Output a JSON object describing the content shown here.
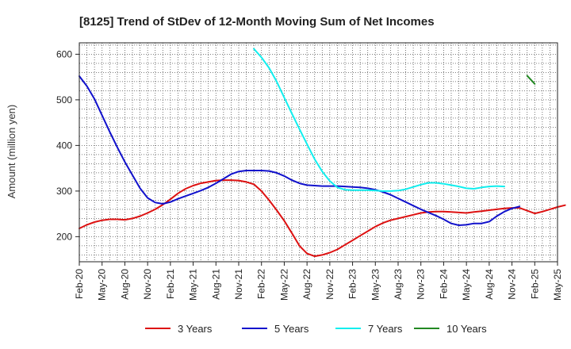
{
  "chart_data": {
    "type": "line",
    "title": "[8125]  Trend of StDev of 12-Month Moving Sum of Net Incomes",
    "xlabel": "",
    "ylabel": "Amount (million yen)",
    "ylim": [
      145,
      625
    ],
    "yticks": [
      200,
      300,
      400,
      500,
      600
    ],
    "x_tick_labels": [
      "Feb-20",
      "May-20",
      "Aug-20",
      "Nov-20",
      "Feb-21",
      "May-21",
      "Aug-21",
      "Nov-21",
      "Feb-22",
      "May-22",
      "Aug-22",
      "Nov-22",
      "Feb-23",
      "May-23",
      "Aug-23",
      "Nov-23",
      "Feb-24",
      "May-24",
      "Aug-24",
      "Nov-24",
      "Feb-25",
      "May-25"
    ],
    "grid": true,
    "legend_position": "bottom",
    "x_start": "Feb-20",
    "series": [
      {
        "name": "3 Years",
        "color": "#dd1111",
        "start": "Feb-20",
        "values": [
          218,
          226,
          232,
          236,
          238,
          238,
          237,
          240,
          245,
          252,
          260,
          270,
          282,
          295,
          305,
          312,
          317,
          320,
          323,
          324,
          324,
          323,
          320,
          315,
          300,
          280,
          258,
          235,
          208,
          180,
          163,
          157,
          160,
          165,
          172,
          182,
          192,
          202,
          212,
          222,
          230,
          236,
          240,
          244,
          248,
          252,
          254,
          255,
          255,
          254,
          253,
          252,
          254,
          256,
          258,
          260,
          262,
          263,
          263,
          257,
          251,
          255,
          260,
          265,
          269
        ]
      },
      {
        "name": "5 Years",
        "color": "#1111cc",
        "start": "Feb-20",
        "values": [
          552,
          530,
          502,
          466,
          430,
          396,
          364,
          335,
          306,
          285,
          275,
          272,
          276,
          283,
          289,
          295,
          301,
          308,
          317,
          327,
          337,
          343,
          345,
          345,
          345,
          344,
          340,
          333,
          324,
          317,
          313,
          312,
          311,
          311,
          311,
          310,
          309,
          308,
          306,
          303,
          298,
          292,
          284,
          276,
          268,
          260,
          253,
          246,
          238,
          229,
          225,
          226,
          229,
          229,
          233,
          245,
          255,
          262,
          266
        ]
      },
      {
        "name": "7 Years",
        "color": "#11eeee",
        "start": "Jan-22",
        "values": [
          612,
          593,
          570,
          540,
          505,
          470,
          436,
          403,
          370,
          343,
          322,
          308,
          303,
          302,
          302,
          302,
          301,
          300,
          300,
          301,
          304,
          309,
          314,
          318,
          318,
          316,
          313,
          310,
          306,
          305,
          308,
          310,
          311,
          310
        ]
      },
      {
        "name": "10 Years",
        "color": "#228822",
        "start": "Jan-25",
        "values": [
          553,
          535
        ]
      }
    ]
  }
}
